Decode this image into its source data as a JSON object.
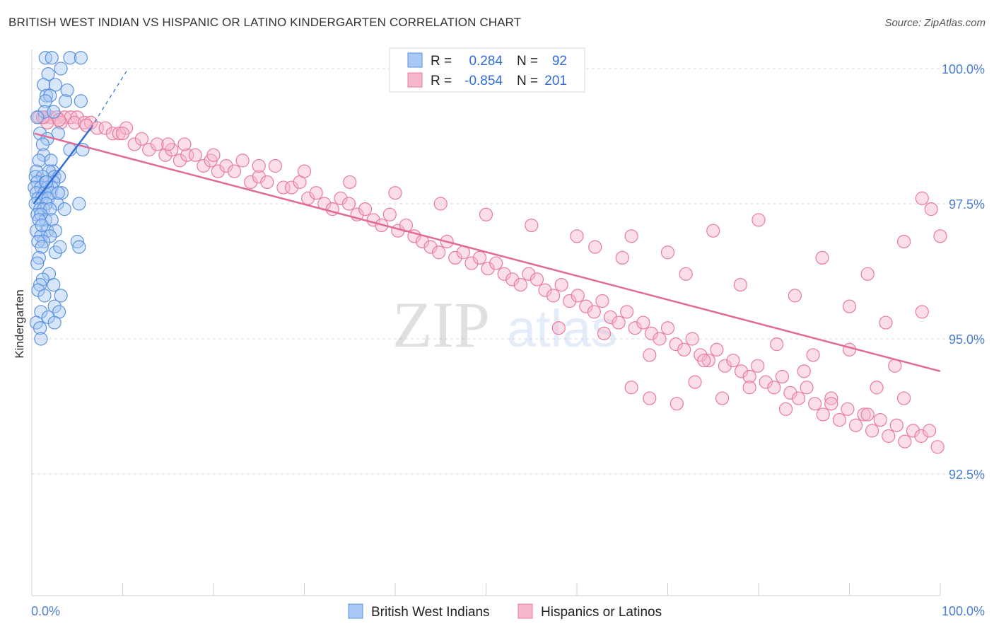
{
  "title": "BRITISH WEST INDIAN VS HISPANIC OR LATINO KINDERGARTEN CORRELATION CHART",
  "source": "Source: ZipAtlas.com",
  "watermark": {
    "zip": "ZIP",
    "atlas": "atlas"
  },
  "colors": {
    "blue_fill": "#a9c8f3",
    "blue_stroke": "#5b92dd",
    "blue_line": "#2e6fd4",
    "pink_fill": "#f6b6cb",
    "pink_stroke": "#e87aa0",
    "pink_line": "#e06b96",
    "tick_text": "#4a7fd1",
    "grid": "#d9d9d9"
  },
  "legend": {
    "rows": [
      {
        "r_label": "R =",
        "r_value": "0.284",
        "n_label": "N =",
        "n_value": "92",
        "color": "blue"
      },
      {
        "r_label": "R =",
        "r_value": "-0.854",
        "n_label": "N =",
        "n_value": "201",
        "color": "pink"
      }
    ]
  },
  "bottom_legend": [
    {
      "label": "British West Indians",
      "color": "blue"
    },
    {
      "label": "Hispanics or Latinos",
      "color": "pink"
    }
  ],
  "chart_data": {
    "type": "scatter",
    "xlabel": "",
    "ylabel": "Kindergarten",
    "xlim": [
      0,
      100
    ],
    "ylim": [
      90.0,
      100.2
    ],
    "x_tick_labels": [
      {
        "value": 0,
        "label": "0.0%"
      },
      {
        "value": 100,
        "label": "100.0%"
      }
    ],
    "y_tick_labels": [
      {
        "value": 100.0,
        "label": "100.0%"
      },
      {
        "value": 97.5,
        "label": "97.5%"
      },
      {
        "value": 95.0,
        "label": "95.0%"
      },
      {
        "value": 92.5,
        "label": "92.5%"
      }
    ],
    "grid": true,
    "legend_position": "top-center",
    "series": [
      {
        "name": "British West Indians",
        "color": "#a9c8f3",
        "trend": {
          "x": [
            0.2,
            6.5
          ],
          "y": [
            97.5,
            98.9
          ],
          "dashed_to": {
            "x": 10.6,
            "y": 100.0
          }
        },
        "points": [
          [
            1.5,
            100.2
          ],
          [
            2.2,
            100.2
          ],
          [
            4.2,
            100.2
          ],
          [
            5.4,
            100.2
          ],
          [
            3.2,
            100.0
          ],
          [
            1.8,
            99.9
          ],
          [
            1.3,
            99.7
          ],
          [
            2.6,
            99.7
          ],
          [
            3.9,
            99.6
          ],
          [
            1.6,
            99.5
          ],
          [
            2.0,
            99.5
          ],
          [
            1.5,
            99.4
          ],
          [
            5.4,
            99.4
          ],
          [
            1.4,
            99.2
          ],
          [
            3.7,
            99.4
          ],
          [
            0.9,
            98.8
          ],
          [
            2.9,
            98.8
          ],
          [
            1.7,
            98.7
          ],
          [
            1.2,
            98.6
          ],
          [
            4.2,
            98.5
          ],
          [
            5.6,
            98.5
          ],
          [
            1.3,
            98.4
          ],
          [
            0.8,
            98.3
          ],
          [
            2.1,
            98.3
          ],
          [
            0.5,
            98.1
          ],
          [
            2.3,
            98.1
          ],
          [
            1.9,
            98.1
          ],
          [
            0.4,
            98.0
          ],
          [
            1.2,
            98.0
          ],
          [
            2.5,
            98.0
          ],
          [
            3.0,
            98.0
          ],
          [
            0.6,
            97.9
          ],
          [
            1.5,
            97.9
          ],
          [
            2.4,
            97.9
          ],
          [
            0.3,
            97.8
          ],
          [
            1.0,
            97.8
          ],
          [
            1.7,
            97.8
          ],
          [
            2.2,
            97.8
          ],
          [
            0.5,
            97.7
          ],
          [
            1.4,
            97.7
          ],
          [
            2.1,
            97.7
          ],
          [
            3.3,
            97.7
          ],
          [
            0.7,
            97.6
          ],
          [
            1.1,
            97.6
          ],
          [
            1.8,
            97.6
          ],
          [
            0.4,
            97.5
          ],
          [
            1.6,
            97.5
          ],
          [
            2.8,
            97.5
          ],
          [
            5.2,
            97.5
          ],
          [
            0.9,
            97.4
          ],
          [
            1.3,
            97.4
          ],
          [
            2.0,
            97.4
          ],
          [
            3.6,
            97.4
          ],
          [
            0.6,
            97.3
          ],
          [
            1.0,
            97.3
          ],
          [
            1.5,
            97.2
          ],
          [
            0.8,
            97.2
          ],
          [
            2.2,
            97.2
          ],
          [
            0.5,
            97.0
          ],
          [
            1.7,
            97.0
          ],
          [
            2.6,
            97.0
          ],
          [
            1.0,
            96.9
          ],
          [
            2.0,
            96.9
          ],
          [
            1.3,
            96.8
          ],
          [
            0.7,
            96.8
          ],
          [
            5.0,
            96.8
          ],
          [
            5.2,
            96.7
          ],
          [
            1.1,
            96.7
          ],
          [
            2.6,
            96.6
          ],
          [
            0.8,
            96.5
          ],
          [
            0.6,
            96.4
          ],
          [
            1.9,
            96.2
          ],
          [
            1.2,
            96.1
          ],
          [
            0.9,
            96.0
          ],
          [
            2.4,
            96.0
          ],
          [
            0.7,
            95.9
          ],
          [
            3.2,
            95.8
          ],
          [
            1.4,
            95.8
          ],
          [
            2.5,
            95.6
          ],
          [
            1.0,
            95.5
          ],
          [
            3.0,
            95.5
          ],
          [
            0.5,
            95.3
          ],
          [
            1.8,
            95.4
          ],
          [
            0.9,
            95.2
          ],
          [
            2.5,
            95.3
          ],
          [
            1.0,
            95.0
          ],
          [
            1.6,
            97.9
          ],
          [
            2.9,
            97.7
          ],
          [
            1.1,
            97.1
          ],
          [
            3.1,
            96.7
          ],
          [
            0.6,
            99.1
          ],
          [
            2.4,
            99.2
          ]
        ]
      },
      {
        "name": "Hispanics or Latinos",
        "color": "#f6b6cb",
        "trend": {
          "x": [
            0.3,
            100.0
          ],
          "y": [
            98.8,
            94.4
          ]
        },
        "points": [
          [
            0.8,
            99.1
          ],
          [
            1.4,
            99.1
          ],
          [
            2.1,
            99.1
          ],
          [
            2.8,
            99.1
          ],
          [
            3.6,
            99.1
          ],
          [
            4.3,
            99.1
          ],
          [
            5.0,
            99.1
          ],
          [
            1.7,
            99.0
          ],
          [
            3.2,
            99.0
          ],
          [
            4.7,
            99.0
          ],
          [
            5.8,
            99.0
          ],
          [
            6.5,
            99.0
          ],
          [
            7.2,
            98.9
          ],
          [
            8.1,
            98.9
          ],
          [
            8.9,
            98.8
          ],
          [
            9.6,
            98.8
          ],
          [
            10.4,
            98.9
          ],
          [
            11.3,
            98.6
          ],
          [
            12.1,
            98.7
          ],
          [
            12.9,
            98.5
          ],
          [
            13.8,
            98.6
          ],
          [
            14.7,
            98.4
          ],
          [
            15.4,
            98.5
          ],
          [
            16.3,
            98.3
          ],
          [
            17.1,
            98.4
          ],
          [
            18.0,
            98.4
          ],
          [
            16.8,
            98.6
          ],
          [
            18.9,
            98.2
          ],
          [
            19.7,
            98.3
          ],
          [
            20.5,
            98.1
          ],
          [
            21.4,
            98.2
          ],
          [
            22.3,
            98.1
          ],
          [
            23.2,
            98.3
          ],
          [
            24.1,
            97.9
          ],
          [
            25.0,
            98.0
          ],
          [
            25.9,
            97.9
          ],
          [
            26.8,
            98.2
          ],
          [
            27.7,
            97.8
          ],
          [
            28.6,
            97.8
          ],
          [
            29.5,
            97.9
          ],
          [
            30.4,
            97.6
          ],
          [
            31.3,
            97.7
          ],
          [
            32.2,
            97.5
          ],
          [
            33.1,
            97.4
          ],
          [
            34.0,
            97.6
          ],
          [
            34.9,
            97.5
          ],
          [
            35.8,
            97.3
          ],
          [
            36.7,
            97.4
          ],
          [
            37.6,
            97.2
          ],
          [
            38.5,
            97.1
          ],
          [
            39.4,
            97.3
          ],
          [
            40.3,
            97.0
          ],
          [
            41.2,
            97.1
          ],
          [
            42.1,
            96.9
          ],
          [
            43.0,
            96.8
          ],
          [
            43.9,
            96.7
          ],
          [
            44.8,
            96.6
          ],
          [
            45.7,
            96.8
          ],
          [
            46.6,
            96.5
          ],
          [
            47.5,
            96.6
          ],
          [
            48.4,
            96.4
          ],
          [
            49.3,
            96.5
          ],
          [
            50.2,
            96.3
          ],
          [
            51.1,
            96.4
          ],
          [
            52.0,
            96.2
          ],
          [
            52.9,
            96.1
          ],
          [
            53.8,
            96.0
          ],
          [
            54.7,
            96.2
          ],
          [
            55.6,
            96.1
          ],
          [
            56.5,
            95.9
          ],
          [
            57.4,
            95.8
          ],
          [
            58.3,
            96.0
          ],
          [
            59.2,
            95.7
          ],
          [
            60.1,
            95.8
          ],
          [
            61.0,
            95.6
          ],
          [
            61.9,
            95.5
          ],
          [
            62.8,
            95.7
          ],
          [
            63.7,
            95.4
          ],
          [
            64.6,
            95.3
          ],
          [
            65.5,
            95.5
          ],
          [
            66.4,
            95.2
          ],
          [
            67.3,
            95.3
          ],
          [
            68.2,
            95.1
          ],
          [
            69.1,
            95.0
          ],
          [
            70.0,
            95.2
          ],
          [
            70.9,
            94.9
          ],
          [
            71.8,
            94.8
          ],
          [
            72.7,
            95.0
          ],
          [
            73.6,
            94.7
          ],
          [
            74.5,
            94.6
          ],
          [
            75.4,
            94.8
          ],
          [
            76.3,
            94.5
          ],
          [
            77.2,
            94.6
          ],
          [
            78.1,
            94.4
          ],
          [
            79.0,
            94.3
          ],
          [
            79.9,
            94.5
          ],
          [
            80.8,
            94.2
          ],
          [
            81.7,
            94.1
          ],
          [
            82.6,
            94.3
          ],
          [
            83.5,
            94.0
          ],
          [
            84.4,
            93.9
          ],
          [
            85.3,
            94.1
          ],
          [
            86.2,
            93.8
          ],
          [
            87.1,
            93.6
          ],
          [
            88.0,
            93.9
          ],
          [
            88.9,
            93.5
          ],
          [
            89.8,
            93.7
          ],
          [
            90.7,
            93.4
          ],
          [
            91.6,
            93.6
          ],
          [
            92.5,
            93.3
          ],
          [
            93.4,
            93.5
          ],
          [
            94.3,
            93.2
          ],
          [
            95.2,
            93.4
          ],
          [
            96.1,
            93.1
          ],
          [
            97.0,
            93.3
          ],
          [
            97.9,
            93.2
          ],
          [
            98.8,
            93.3
          ],
          [
            99.7,
            93.0
          ],
          [
            75.0,
            97.0
          ],
          [
            80.0,
            97.2
          ],
          [
            87.0,
            96.5
          ],
          [
            92.0,
            96.2
          ],
          [
            96.0,
            96.8
          ],
          [
            98.0,
            97.6
          ],
          [
            99.0,
            97.4
          ],
          [
            100.0,
            96.9
          ],
          [
            70.0,
            96.6
          ],
          [
            65.0,
            96.5
          ],
          [
            60.0,
            96.9
          ],
          [
            55.0,
            97.1
          ],
          [
            50.0,
            97.3
          ],
          [
            45.0,
            97.5
          ],
          [
            40.0,
            97.7
          ],
          [
            35.0,
            97.9
          ],
          [
            30.0,
            98.1
          ],
          [
            25.0,
            98.2
          ],
          [
            20.0,
            98.4
          ],
          [
            15.0,
            98.6
          ],
          [
            10.0,
            98.8
          ],
          [
            6.0,
            98.95
          ],
          [
            3.0,
            99.05
          ],
          [
            1.2,
            99.1
          ],
          [
            62.0,
            96.7
          ],
          [
            66.0,
            96.9
          ],
          [
            72.0,
            96.2
          ],
          [
            78.0,
            96.0
          ],
          [
            84.0,
            95.8
          ],
          [
            90.0,
            95.6
          ],
          [
            94.0,
            95.3
          ],
          [
            98.0,
            95.5
          ],
          [
            58.0,
            95.2
          ],
          [
            63.0,
            95.1
          ],
          [
            68.0,
            94.7
          ],
          [
            74.0,
            94.6
          ],
          [
            82.0,
            94.9
          ],
          [
            86.0,
            94.7
          ],
          [
            90.0,
            94.8
          ],
          [
            95.0,
            94.5
          ],
          [
            68.0,
            93.9
          ],
          [
            71.0,
            93.8
          ],
          [
            76.0,
            93.9
          ],
          [
            79.0,
            94.1
          ],
          [
            83.0,
            93.7
          ],
          [
            88.0,
            93.8
          ],
          [
            92.0,
            93.6
          ],
          [
            96.0,
            93.9
          ],
          [
            66.0,
            94.1
          ],
          [
            73.0,
            94.2
          ],
          [
            85.0,
            94.4
          ],
          [
            93.0,
            94.1
          ]
        ]
      }
    ]
  }
}
